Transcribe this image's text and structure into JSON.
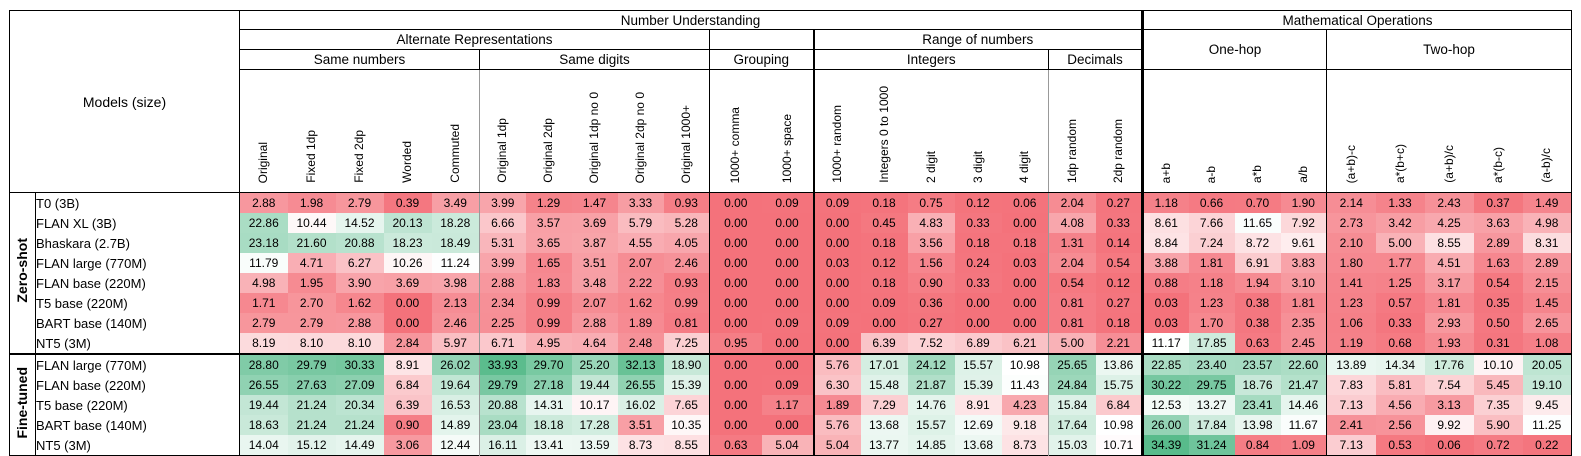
{
  "table": {
    "corner_label": "Models (size)",
    "top_groups": [
      {
        "label": "Number Understanding",
        "span": 19
      },
      {
        "label": "Mathematical Operations",
        "span": 9
      }
    ],
    "mid_groups": [
      {
        "label": "Alternate Representations",
        "span": 10,
        "rowspan": 1
      },
      {
        "label": "",
        "span": 2,
        "rowspan": 1
      },
      {
        "label": "Range of numbers",
        "span": 7,
        "rowspan": 1
      },
      {
        "label": "One-hop",
        "span": 4,
        "rowspan": 2
      },
      {
        "label": "Two-hop",
        "span": 5,
        "rowspan": 2
      }
    ],
    "sub_groups": [
      {
        "label": "Same numbers",
        "span": 5
      },
      {
        "label": "Same digits",
        "span": 5
      },
      {
        "label": "Grouping",
        "span": 2
      },
      {
        "label": "Integers",
        "span": 5
      },
      {
        "label": "Decimals",
        "span": 2
      }
    ],
    "columns": [
      "Original",
      "Fixed 1dp",
      "Fixed 2dp",
      "Worded",
      "Commuted",
      "Original 1dp",
      "Original 2dp",
      "Original 1dp no 0",
      "Original 2dp no 0",
      "Original 1000+",
      "1000+ comma",
      "1000+ space",
      "1000+ random",
      "Integers 0 to 1000",
      "2 digit",
      "3 digit",
      "4 digit",
      "1dp random",
      "2dp random",
      "a+b",
      "a-b",
      "a*b",
      "a/b",
      "(a+b)-c",
      "a*(b+c)",
      "(a+b)/c",
      "a*(b-c)",
      "(a-b)/c"
    ],
    "row_groups": [
      {
        "label": "Zero-shot",
        "rows": [
          {
            "model": "T0 (3B)",
            "values": [
              2.88,
              1.98,
              2.79,
              0.39,
              3.49,
              3.99,
              1.29,
              1.47,
              3.33,
              0.93,
              0.0,
              0.09,
              0.09,
              0.18,
              0.75,
              0.12,
              0.06,
              2.04,
              0.27,
              1.18,
              0.66,
              0.7,
              1.9,
              2.14,
              1.33,
              2.43,
              0.37,
              1.49
            ]
          },
          {
            "model": "FLAN XL (3B)",
            "values": [
              22.86,
              10.44,
              14.52,
              20.13,
              18.28,
              6.66,
              3.57,
              3.69,
              5.79,
              5.28,
              0.0,
              0.0,
              0.0,
              0.45,
              4.83,
              0.33,
              0.0,
              4.08,
              0.33,
              8.61,
              7.66,
              11.65,
              7.92,
              2.73,
              3.42,
              4.25,
              3.63,
              4.98
            ]
          },
          {
            "model": "Bhaskara (2.7B)",
            "values": [
              23.18,
              21.6,
              20.88,
              18.23,
              18.49,
              5.31,
              3.65,
              3.87,
              4.55,
              4.05,
              0.0,
              0.0,
              0.0,
              0.18,
              3.56,
              0.18,
              0.18,
              1.31,
              0.14,
              8.84,
              7.24,
              8.72,
              9.61,
              2.1,
              5.0,
              8.55,
              2.89,
              8.31
            ]
          },
          {
            "model": "FLAN large (770M)",
            "values": [
              11.79,
              4.71,
              6.27,
              10.26,
              11.24,
              3.99,
              1.65,
              3.51,
              2.07,
              2.46,
              0.0,
              0.0,
              0.03,
              0.12,
              1.56,
              0.24,
              0.03,
              2.04,
              0.54,
              3.88,
              1.81,
              6.91,
              3.83,
              1.8,
              1.77,
              4.51,
              1.63,
              2.89
            ]
          },
          {
            "model": "FLAN base (220M)",
            "values": [
              4.98,
              1.95,
              3.9,
              3.69,
              3.98,
              2.88,
              1.83,
              3.48,
              2.22,
              0.93,
              0.0,
              0.0,
              0.0,
              0.18,
              0.9,
              0.33,
              0.0,
              0.54,
              0.12,
              0.88,
              1.18,
              1.94,
              3.1,
              1.41,
              1.25,
              3.17,
              0.54,
              2.15
            ]
          },
          {
            "model": "T5 base (220M)",
            "values": [
              1.71,
              2.7,
              1.62,
              0.0,
              2.13,
              2.34,
              0.99,
              2.07,
              1.62,
              0.99,
              0.0,
              0.0,
              0.0,
              0.09,
              0.36,
              0.0,
              0.0,
              0.81,
              0.27,
              0.03,
              1.23,
              0.38,
              1.81,
              1.23,
              0.57,
              1.81,
              0.35,
              1.45
            ]
          },
          {
            "model": "BART base (140M)",
            "values": [
              2.79,
              2.79,
              2.88,
              0.0,
              2.46,
              2.25,
              0.99,
              2.88,
              1.89,
              0.81,
              0.0,
              0.09,
              0.09,
              0.0,
              0.27,
              0.0,
              0.0,
              0.81,
              0.18,
              0.03,
              1.7,
              0.38,
              2.35,
              1.06,
              0.33,
              2.93,
              0.5,
              2.65
            ]
          },
          {
            "model": "NT5 (3M)",
            "values": [
              8.19,
              8.1,
              8.1,
              2.84,
              5.97,
              6.71,
              4.95,
              4.64,
              2.48,
              7.25,
              0.95,
              0.0,
              0.0,
              6.39,
              7.52,
              6.89,
              6.21,
              5.0,
              2.21,
              11.17,
              17.85,
              0.63,
              2.45,
              1.19,
              0.68,
              1.93,
              0.31,
              1.08
            ]
          }
        ]
      },
      {
        "label": "Fine-tuned",
        "rows": [
          {
            "model": "FLAN large (770M)",
            "values": [
              28.8,
              29.79,
              30.33,
              8.91,
              26.02,
              33.93,
              29.7,
              25.2,
              32.13,
              18.9,
              0.0,
              0.0,
              5.76,
              17.01,
              24.12,
              15.57,
              10.98,
              25.65,
              13.86,
              22.85,
              23.4,
              23.57,
              22.6,
              13.89,
              14.34,
              17.76,
              10.1,
              20.05
            ]
          },
          {
            "model": "FLAN base (220M)",
            "values": [
              26.55,
              27.63,
              27.09,
              6.84,
              19.64,
              29.79,
              27.18,
              19.44,
              26.55,
              15.39,
              0.0,
              0.09,
              6.3,
              15.48,
              21.87,
              15.39,
              11.43,
              24.84,
              15.75,
              30.22,
              29.75,
              18.76,
              21.47,
              7.83,
              5.81,
              7.54,
              5.45,
              19.1
            ]
          },
          {
            "model": "T5 base (220M)",
            "values": [
              19.44,
              21.24,
              20.34,
              6.39,
              16.53,
              20.88,
              14.31,
              10.17,
              16.02,
              7.65,
              0.0,
              1.17,
              1.89,
              7.29,
              14.76,
              8.91,
              4.23,
              15.84,
              6.84,
              12.53,
              13.27,
              23.41,
              14.46,
              7.13,
              4.56,
              3.13,
              7.35,
              9.45
            ]
          },
          {
            "model": "BART base (140M)",
            "values": [
              18.63,
              21.24,
              21.24,
              0.9,
              14.89,
              23.04,
              18.18,
              17.28,
              3.51,
              10.35,
              0.0,
              0.0,
              5.76,
              13.68,
              15.57,
              12.69,
              9.18,
              17.64,
              10.98,
              26.0,
              17.84,
              13.98,
              11.67,
              2.41,
              2.56,
              9.92,
              5.9,
              11.25
            ]
          },
          {
            "model": "NT5 (3M)",
            "values": [
              14.04,
              15.12,
              14.49,
              3.06,
              12.44,
              16.11,
              13.41,
              13.59,
              8.73,
              8.55,
              0.63,
              5.04,
              5.04,
              13.77,
              14.85,
              13.68,
              8.73,
              15.03,
              10.71,
              34.39,
              31.24,
              0.84,
              1.09,
              7.13,
              0.53,
              0.06,
              0.72,
              0.22
            ]
          }
        ]
      }
    ],
    "heatmap": {
      "min": 0,
      "mid": 11,
      "max": 34.39,
      "red": "#f4727b",
      "green": "#58bb8b",
      "white": "#ffffff"
    }
  }
}
